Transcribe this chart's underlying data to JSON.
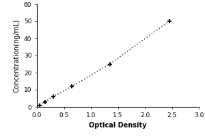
{
  "x_values": [
    0.05,
    0.15,
    0.3,
    0.65,
    1.35,
    2.45
  ],
  "y_values": [
    1.0,
    3.0,
    6.0,
    12.0,
    25.0,
    50.0
  ],
  "xlabel": "Optical Density",
  "ylabel": "Concentration(ng/mL)",
  "xlim": [
    0,
    3
  ],
  "ylim": [
    0,
    60
  ],
  "xticks": [
    0,
    0.5,
    1,
    1.5,
    2,
    2.5,
    3
  ],
  "yticks": [
    0,
    10,
    20,
    30,
    40,
    50,
    60
  ],
  "line_color": "#555555",
  "marker_color": "#111111",
  "line_style": "dotted",
  "marker_style": "+",
  "marker_size": 5,
  "marker_linewidth": 1.5,
  "line_width": 1.2,
  "background_color": "#ffffff",
  "label_fontsize": 7,
  "tick_fontsize": 6.5
}
